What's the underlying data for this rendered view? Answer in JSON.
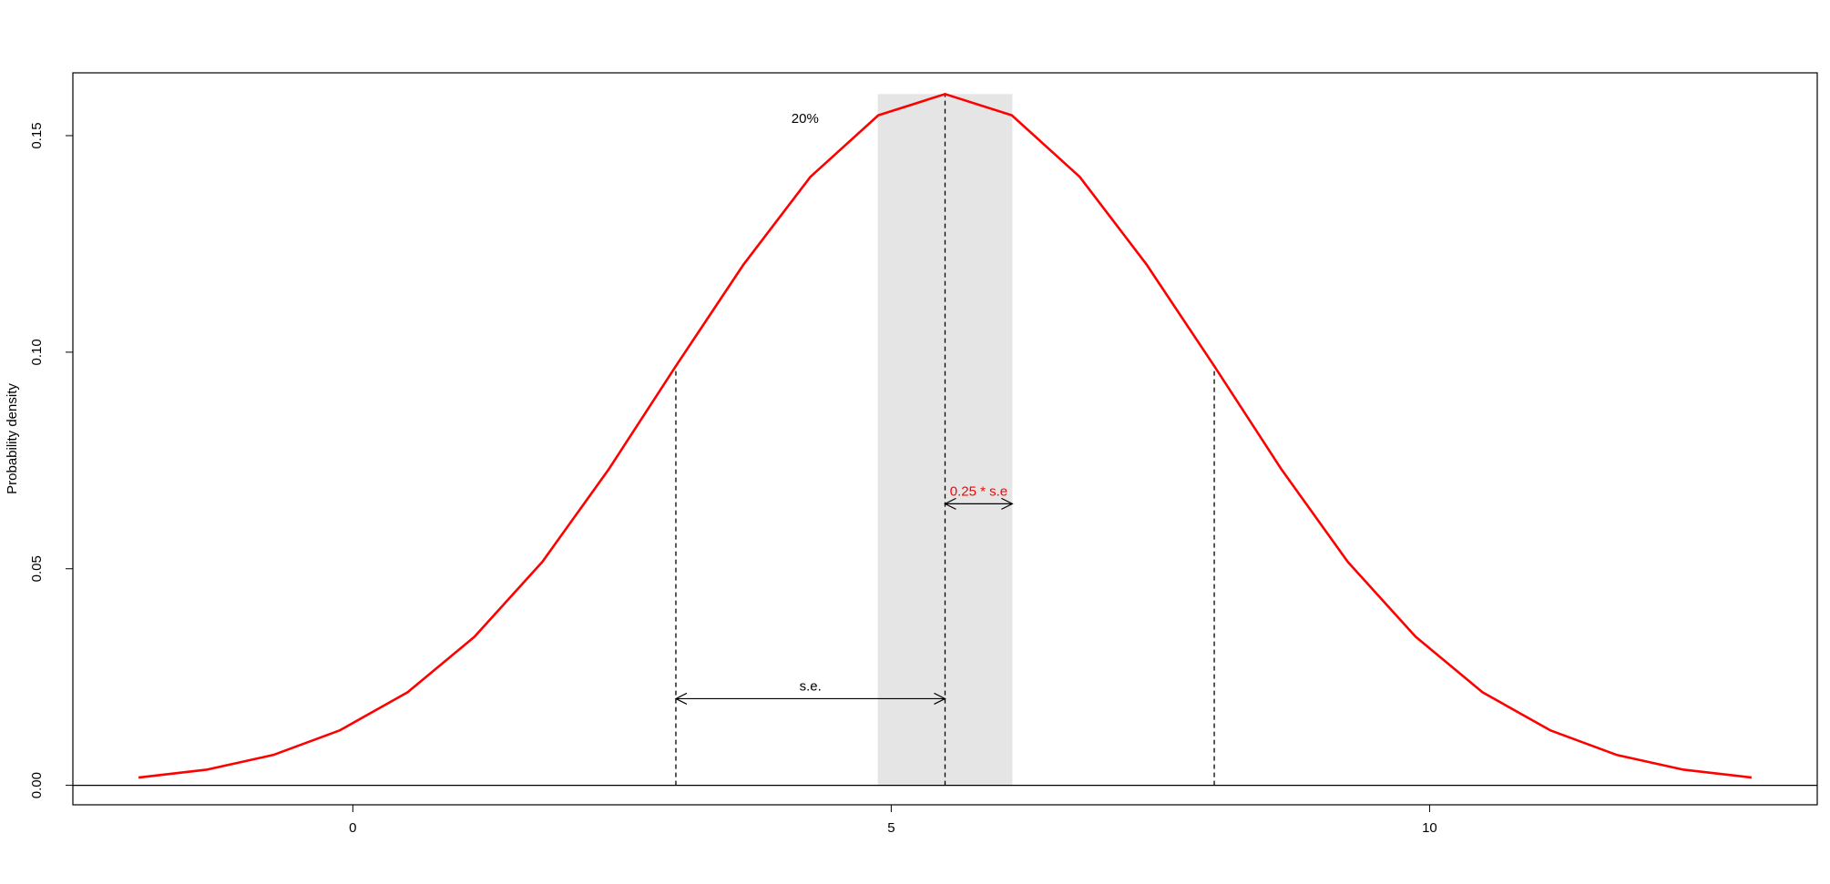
{
  "chart_data": {
    "type": "line",
    "title": "",
    "xlabel": "",
    "ylabel": "Probability density",
    "xlim": [
      -2.6,
      13.6
    ],
    "ylim": [
      -0.0045,
      0.1645
    ],
    "xticks": [
      0,
      5,
      10
    ],
    "xtick_labels": [
      "0",
      "5",
      "10"
    ],
    "yticks": [
      0.0,
      0.05,
      0.1,
      0.15
    ],
    "ytick_labels": [
      "0.00",
      "0.05",
      "0.10",
      "0.15"
    ],
    "grid": false,
    "series": [
      {
        "color": "#ff0000",
        "x": [
          -1.99,
          -1.36,
          -0.74,
          -0.12,
          0.51,
          1.13,
          1.76,
          2.38,
          3.0,
          3.63,
          4.25,
          4.88,
          5.5,
          6.12,
          6.75,
          7.37,
          8.0,
          8.62,
          9.24,
          9.87,
          10.49,
          11.12,
          11.74,
          12.36,
          12.99
        ],
        "y": [
          0.0018,
          0.0036,
          0.007,
          0.0127,
          0.0215,
          0.0343,
          0.0516,
          0.0731,
          0.0968,
          0.1203,
          0.1405,
          0.1547,
          0.1596,
          0.1547,
          0.1405,
          0.1203,
          0.0968,
          0.0731,
          0.0516,
          0.0343,
          0.0215,
          0.0127,
          0.007,
          0.0036,
          0.0018
        ]
      }
    ],
    "shaded_region": {
      "x_from": 4.875,
      "x_to": 6.125,
      "color": "#e5e5e5"
    },
    "mean": 5.5,
    "se": 2.5,
    "reference_lines": [
      {
        "x": 3.0,
        "y_top": 0.0968
      },
      {
        "x": 5.5,
        "y_top": 0.1596
      },
      {
        "x": 8.0,
        "y_top": 0.0968
      }
    ],
    "baseline_y": 0.0,
    "arrows": [
      {
        "from": 3.0,
        "to": 5.5,
        "y": 0.02,
        "label": "s.e.",
        "label_color": "#000000"
      },
      {
        "from": 5.5,
        "to": 6.125,
        "y": 0.065,
        "label": "0.25 * s.e",
        "label_color": "#ff0000"
      }
    ],
    "annotations": [
      {
        "text": "20%",
        "x": 4.2,
        "y": 0.154,
        "color": "#000000"
      }
    ]
  }
}
